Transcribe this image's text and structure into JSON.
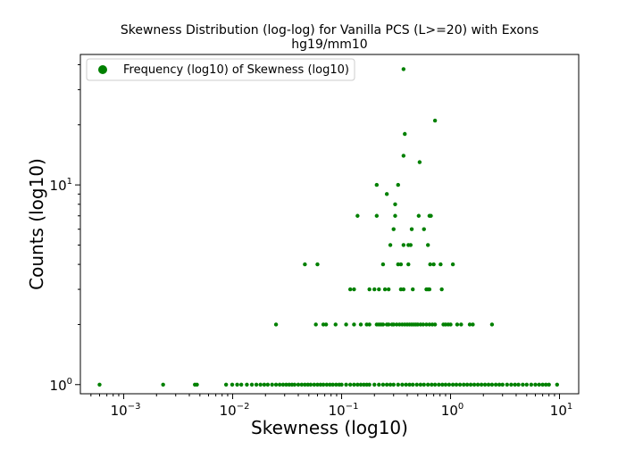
{
  "chart_data": {
    "type": "scatter",
    "title": "Skewness Distribution (log-log) for Vanilla PCS (L>=20) with Exons",
    "subtitle": "hg19/mm10",
    "xlabel": "Skewness (log10)",
    "ylabel": "Counts (log10)",
    "x_scale": "log",
    "y_scale": "log",
    "xlim": [
      0.0004,
      15
    ],
    "ylim": [
      0.9,
      45
    ],
    "x_ticks": [
      {
        "value": 0.001,
        "base": "10",
        "exp": "−3"
      },
      {
        "value": 0.01,
        "base": "10",
        "exp": "−2"
      },
      {
        "value": 0.1,
        "base": "10",
        "exp": "−1"
      },
      {
        "value": 1,
        "base": "10",
        "exp": "0"
      },
      {
        "value": 10,
        "base": "10",
        "exp": "1"
      }
    ],
    "y_ticks": [
      {
        "value": 1,
        "base": "10",
        "exp": "0"
      },
      {
        "value": 10,
        "base": "10",
        "exp": "1"
      }
    ],
    "grid": false,
    "legend_position": "top-left",
    "legend": [
      "Frequency (log10) of Skewness (log10)"
    ],
    "marker_color": "#008000",
    "series": [
      {
        "name": "Frequency (log10) of Skewness (log10)",
        "points": [
          [
            0.37,
            38
          ],
          [
            0.72,
            21
          ],
          [
            0.38,
            18
          ],
          [
            0.37,
            14
          ],
          [
            0.52,
            13
          ],
          [
            0.21,
            10
          ],
          [
            0.33,
            10
          ],
          [
            0.26,
            9
          ],
          [
            0.31,
            8
          ],
          [
            0.14,
            7
          ],
          [
            0.21,
            7
          ],
          [
            0.31,
            7
          ],
          [
            0.51,
            7
          ],
          [
            0.64,
            7
          ],
          [
            0.66,
            7
          ],
          [
            0.3,
            6
          ],
          [
            0.44,
            6
          ],
          [
            0.57,
            6
          ],
          [
            0.28,
            5
          ],
          [
            0.37,
            5
          ],
          [
            0.41,
            5
          ],
          [
            0.43,
            5
          ],
          [
            0.62,
            5
          ],
          [
            0.046,
            4
          ],
          [
            0.06,
            4
          ],
          [
            0.24,
            4
          ],
          [
            0.33,
            4
          ],
          [
            0.35,
            4
          ],
          [
            0.41,
            4
          ],
          [
            0.65,
            4
          ],
          [
            0.7,
            4
          ],
          [
            0.81,
            4
          ],
          [
            1.05,
            4
          ],
          [
            0.12,
            3
          ],
          [
            0.13,
            3
          ],
          [
            0.18,
            3
          ],
          [
            0.2,
            3
          ],
          [
            0.22,
            3
          ],
          [
            0.25,
            3
          ],
          [
            0.27,
            3
          ],
          [
            0.35,
            3
          ],
          [
            0.37,
            3
          ],
          [
            0.45,
            3
          ],
          [
            0.6,
            3
          ],
          [
            0.62,
            3
          ],
          [
            0.64,
            3
          ],
          [
            0.83,
            3
          ],
          [
            0.025,
            2
          ],
          [
            0.058,
            2
          ],
          [
            0.068,
            2
          ],
          [
            0.072,
            2
          ],
          [
            0.088,
            2
          ],
          [
            0.11,
            2
          ],
          [
            0.13,
            2
          ],
          [
            0.15,
            2
          ],
          [
            0.17,
            2
          ],
          [
            0.18,
            2
          ],
          [
            0.21,
            2
          ],
          [
            0.22,
            2
          ],
          [
            0.23,
            2
          ],
          [
            0.24,
            2
          ],
          [
            0.26,
            2
          ],
          [
            0.27,
            2
          ],
          [
            0.29,
            2
          ],
          [
            0.3,
            2
          ],
          [
            0.32,
            2
          ],
          [
            0.34,
            2
          ],
          [
            0.36,
            2
          ],
          [
            0.38,
            2
          ],
          [
            0.4,
            2
          ],
          [
            0.42,
            2
          ],
          [
            0.44,
            2
          ],
          [
            0.46,
            2
          ],
          [
            0.48,
            2
          ],
          [
            0.5,
            2
          ],
          [
            0.53,
            2
          ],
          [
            0.56,
            2
          ],
          [
            0.6,
            2
          ],
          [
            0.64,
            2
          ],
          [
            0.68,
            2
          ],
          [
            0.72,
            2
          ],
          [
            0.86,
            2
          ],
          [
            0.9,
            2
          ],
          [
            0.95,
            2
          ],
          [
            1.0,
            2
          ],
          [
            1.15,
            2
          ],
          [
            1.25,
            2
          ],
          [
            1.5,
            2
          ],
          [
            1.6,
            2
          ],
          [
            2.4,
            2
          ],
          [
            0.0006,
            1
          ],
          [
            0.0023,
            1
          ],
          [
            0.0045,
            1
          ],
          [
            0.0047,
            1
          ],
          [
            0.0087,
            1
          ],
          [
            0.0099,
            1
          ],
          [
            0.011,
            1
          ],
          [
            0.012,
            1
          ],
          [
            0.0135,
            1
          ],
          [
            0.015,
            1
          ],
          [
            0.0165,
            1
          ],
          [
            0.018,
            1
          ],
          [
            0.0195,
            1
          ],
          [
            0.021,
            1
          ],
          [
            0.023,
            1
          ],
          [
            0.025,
            1
          ],
          [
            0.027,
            1
          ],
          [
            0.029,
            1
          ],
          [
            0.031,
            1
          ],
          [
            0.033,
            1
          ],
          [
            0.035,
            1
          ],
          [
            0.037,
            1
          ],
          [
            0.04,
            1
          ],
          [
            0.043,
            1
          ],
          [
            0.046,
            1
          ],
          [
            0.049,
            1
          ],
          [
            0.052,
            1
          ],
          [
            0.056,
            1
          ],
          [
            0.06,
            1
          ],
          [
            0.064,
            1
          ],
          [
            0.068,
            1
          ],
          [
            0.073,
            1
          ],
          [
            0.078,
            1
          ],
          [
            0.083,
            1
          ],
          [
            0.089,
            1
          ],
          [
            0.095,
            1
          ],
          [
            0.1,
            1
          ],
          [
            0.11,
            1
          ],
          [
            0.12,
            1
          ],
          [
            0.13,
            1
          ],
          [
            0.14,
            1
          ],
          [
            0.15,
            1
          ],
          [
            0.16,
            1
          ],
          [
            0.17,
            1
          ],
          [
            0.18,
            1
          ],
          [
            0.2,
            1
          ],
          [
            0.22,
            1
          ],
          [
            0.24,
            1
          ],
          [
            0.26,
            1
          ],
          [
            0.28,
            1
          ],
          [
            0.3,
            1
          ],
          [
            0.33,
            1
          ],
          [
            0.36,
            1
          ],
          [
            0.39,
            1
          ],
          [
            0.42,
            1
          ],
          [
            0.45,
            1
          ],
          [
            0.49,
            1
          ],
          [
            0.53,
            1
          ],
          [
            0.57,
            1
          ],
          [
            0.62,
            1
          ],
          [
            0.67,
            1
          ],
          [
            0.72,
            1
          ],
          [
            0.78,
            1
          ],
          [
            0.84,
            1
          ],
          [
            0.9,
            1
          ],
          [
            0.97,
            1
          ],
          [
            1.05,
            1
          ],
          [
            1.13,
            1
          ],
          [
            1.22,
            1
          ],
          [
            1.32,
            1
          ],
          [
            1.42,
            1
          ],
          [
            1.53,
            1
          ],
          [
            1.65,
            1
          ],
          [
            1.78,
            1
          ],
          [
            1.92,
            1
          ],
          [
            2.07,
            1
          ],
          [
            2.23,
            1
          ],
          [
            2.4,
            1
          ],
          [
            2.6,
            1
          ],
          [
            2.8,
            1
          ],
          [
            3.0,
            1
          ],
          [
            3.3,
            1
          ],
          [
            3.6,
            1
          ],
          [
            3.9,
            1
          ],
          [
            4.2,
            1
          ],
          [
            4.6,
            1
          ],
          [
            5.0,
            1
          ],
          [
            5.5,
            1
          ],
          [
            6.0,
            1
          ],
          [
            6.5,
            1
          ],
          [
            7.0,
            1
          ],
          [
            7.5,
            1
          ],
          [
            8.0,
            1
          ],
          [
            9.5,
            1
          ]
        ]
      }
    ]
  }
}
